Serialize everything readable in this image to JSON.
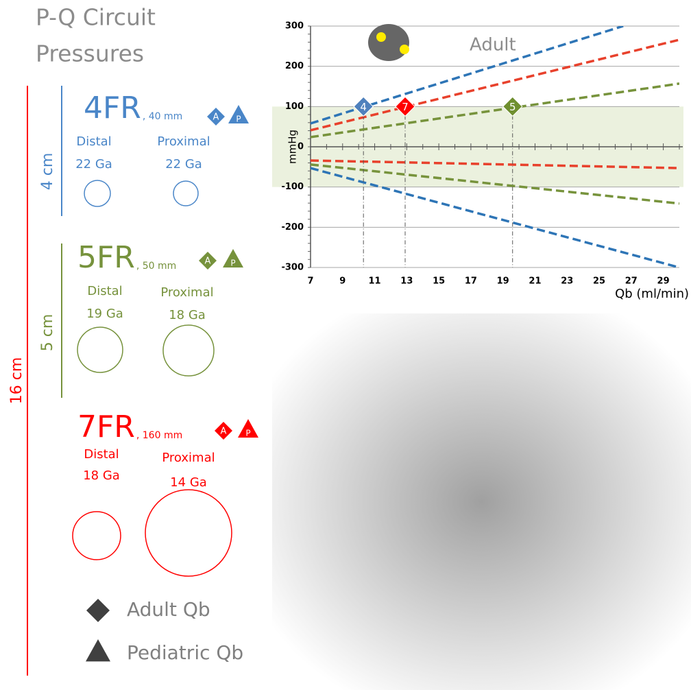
{
  "title_lines": [
    "P-Q Circuit",
    "Pressures"
  ],
  "scale_labels": {
    "total": "16 cm",
    "fr4": "4 cm",
    "fr5": "5 cm"
  },
  "catheters": [
    {
      "name": "4FR",
      "length": ", 40 mm",
      "color": "#4a86c8",
      "adult_badge": "A",
      "pediatric_badge": "P",
      "distal": {
        "label": "Distal",
        "gauge": "22 Ga"
      },
      "proximal": {
        "label": "Proximal",
        "gauge": "22 Ga"
      }
    },
    {
      "name": "5FR",
      "length": ", 50 mm",
      "color": "#76923c",
      "adult_badge": "A",
      "pediatric_badge": "P",
      "distal": {
        "label": "Distal",
        "gauge": "19 Ga"
      },
      "proximal": {
        "label": "Proximal",
        "gauge": "18 Ga"
      }
    },
    {
      "name": "7FR",
      "length": ", 160 mm",
      "color": "#ff0000",
      "adult_badge": "A",
      "pediatric_badge": "P",
      "distal": {
        "label": "Distal",
        "gauge": "18 Ga"
      },
      "proximal": {
        "label": "Proximal",
        "gauge": "14 Ga"
      }
    }
  ],
  "legend": [
    {
      "label": "Adult Qb",
      "marker": "diamond"
    },
    {
      "label": "Pediatric Qb",
      "marker": "triangle"
    }
  ],
  "chart_data": {
    "type": "line",
    "annotation": "Adult",
    "y_label": "mmHg",
    "x_label": "Qb (ml/min)",
    "xlim": [
      7,
      30
    ],
    "ylim": [
      -300,
      300
    ],
    "xticks": [
      7,
      9,
      11,
      13,
      15,
      17,
      19,
      21,
      23,
      25,
      27,
      29
    ],
    "yticks": [
      -300,
      -200,
      -100,
      0,
      100,
      200,
      300
    ],
    "grid": true,
    "shaded_band": [
      -100,
      100
    ],
    "line_style": "dashed",
    "series": [
      {
        "color": "#2e75b6",
        "x": [
          7,
          26.5
        ],
        "values": [
          58,
          300
        ]
      },
      {
        "color": "#e8412c",
        "x": [
          7,
          30
        ],
        "values": [
          41,
          266
        ]
      },
      {
        "color": "#77933c",
        "x": [
          7,
          30
        ],
        "values": [
          24,
          157
        ]
      },
      {
        "color": "#2e75b6",
        "x": [
          7,
          30
        ],
        "values": [
          -53,
          -300
        ]
      },
      {
        "color": "#e8412c",
        "x": [
          7,
          30
        ],
        "values": [
          -34,
          -53
        ]
      },
      {
        "color": "#77933c",
        "x": [
          7,
          30
        ],
        "values": [
          -44,
          -141
        ]
      }
    ],
    "markers": [
      {
        "label": "4",
        "x": 10.3,
        "y": 100,
        "color": "#4f81bd"
      },
      {
        "label": "7",
        "x": 12.9,
        "y": 100,
        "color": "#ff0000"
      },
      {
        "label": "5",
        "x": 19.6,
        "y": 100,
        "color": "#6f8f2f"
      }
    ]
  }
}
